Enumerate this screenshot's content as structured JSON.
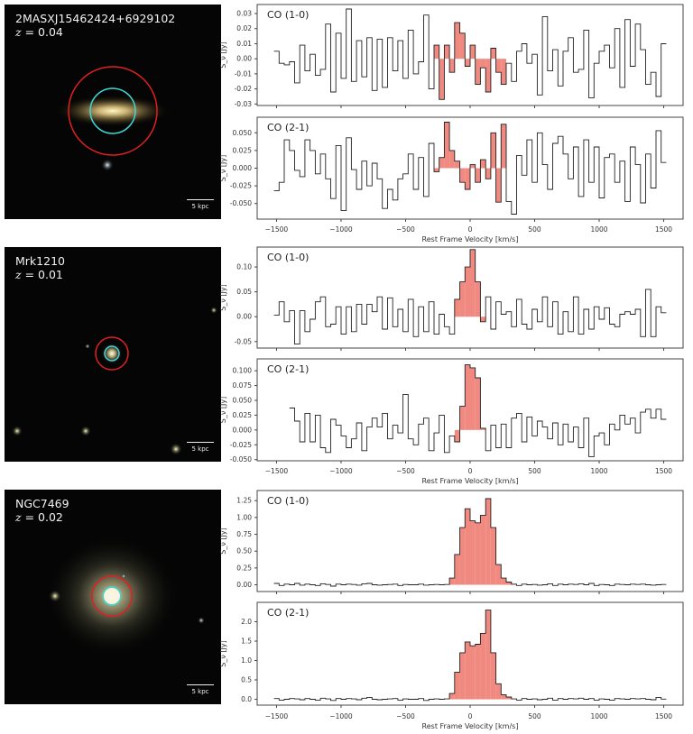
{
  "galaxies": [
    {
      "name": "2MASXJ15462424+6929102",
      "z_label": "z",
      "z_value": "= 0.04",
      "scale_label": "5 kpc"
    },
    {
      "name": "Mrk1210",
      "z_label": "z",
      "z_value": "= 0.01",
      "scale_label": "5 kpc"
    },
    {
      "name": "NGC7469",
      "z_label": "z",
      "z_value": "= 0.02",
      "scale_label": "5 kpc"
    }
  ],
  "colors": {
    "line": "#222222",
    "fill": "#f08a80",
    "aperture_outer": "#e02020",
    "aperture_inner": "#40d8d8"
  },
  "chart_data": [
    {
      "type": "line",
      "galaxy": "2MASXJ15462424+6929102",
      "title": "CO (1-0)",
      "ylabel": "S_ν [Jy]",
      "xlabel": "Rest Frame Velocity [km/s]",
      "xlim": [
        -1650,
        1650
      ],
      "ylim": [
        -0.031,
        0.036
      ],
      "xticks": [
        -1500,
        -1000,
        -500,
        0,
        500,
        1000,
        1500
      ],
      "yticks": [
        -0.03,
        -0.02,
        -0.01,
        0.0,
        0.01,
        0.02,
        0.03
      ],
      "ytick_decimals": 2,
      "x_start": -1500,
      "channel_width": 40,
      "line_window": [
        -260,
        260
      ],
      "values": [
        0.005,
        -0.003,
        -0.004,
        -0.002,
        -0.016,
        0.009,
        -0.008,
        0.003,
        -0.011,
        -0.007,
        0.023,
        -0.022,
        0.017,
        -0.013,
        0.033,
        -0.015,
        0.012,
        -0.012,
        0.014,
        -0.021,
        0.013,
        -0.019,
        0.014,
        -0.008,
        0.012,
        -0.013,
        0.019,
        -0.01,
        -0.002,
        0.029,
        -0.02,
        0.009,
        -0.027,
        0.009,
        -0.009,
        0.024,
        0.017,
        -0.005,
        0.009,
        -0.017,
        -0.006,
        -0.022,
        0.007,
        -0.009,
        -0.017,
        -0.003,
        -0.015,
        0.005,
        0.01,
        -0.003,
        0.003,
        -0.024,
        0.028,
        -0.008,
        0.006,
        -0.018,
        0.005,
        0.014,
        -0.009,
        -0.007,
        0.019,
        -0.026,
        -0.003,
        0.005,
        0.009,
        -0.006,
        0.02,
        -0.019,
        0.026,
        -0.005,
        0.023,
        0.006,
        -0.017,
        -0.009,
        -0.025,
        0.01
      ]
    },
    {
      "type": "line",
      "galaxy": "2MASXJ15462424+6929102",
      "title": "CO (2-1)",
      "ylabel": "S_ν [Jy]",
      "xlabel": "Rest Frame Velocity [km/s]",
      "xlim": [
        -1650,
        1650
      ],
      "ylim": [
        -0.072,
        0.072
      ],
      "xticks": [
        -1500,
        -1000,
        -500,
        0,
        500,
        1000,
        1500
      ],
      "yticks": [
        -0.05,
        -0.025,
        0.0,
        0.025,
        0.05
      ],
      "ytick_decimals": 3,
      "x_start": -1500,
      "channel_width": 40,
      "line_window": [
        -260,
        260
      ],
      "values": [
        -0.032,
        -0.02,
        0.04,
        0.025,
        -0.003,
        -0.012,
        0.04,
        0.025,
        -0.008,
        0.02,
        -0.015,
        -0.043,
        0.032,
        -0.06,
        0.043,
        -0.002,
        -0.03,
        0.01,
        -0.025,
        0.007,
        -0.015,
        -0.057,
        -0.03,
        -0.045,
        -0.015,
        -0.008,
        0.02,
        -0.03,
        0.015,
        -0.04,
        0.035,
        -0.005,
        0.015,
        0.065,
        0.025,
        0.01,
        -0.02,
        -0.03,
        0.005,
        -0.02,
        0.012,
        -0.015,
        0.05,
        -0.048,
        0.062,
        -0.047,
        -0.065,
        0.018,
        -0.01,
        0.04,
        -0.02,
        0.05,
        0.005,
        -0.03,
        0.035,
        0.045,
        0.02,
        -0.015,
        0.03,
        -0.04,
        0.04,
        -0.02,
        0.03,
        -0.042,
        0.015,
        0.02,
        -0.02,
        0.01,
        -0.047,
        0.03,
        0.005,
        -0.049,
        0.02,
        -0.028,
        0.053,
        0.008
      ]
    },
    {
      "type": "line",
      "galaxy": "Mrk1210",
      "title": "CO (1-0)",
      "ylabel": "S_ν [Jy]",
      "xlabel": "Rest Frame Velocity [km/s]",
      "xlim": [
        -1650,
        1650
      ],
      "ylim": [
        -0.063,
        0.14
      ],
      "xticks": [
        -1500,
        -1000,
        -500,
        0,
        500,
        1000,
        1500
      ],
      "yticks": [
        -0.05,
        0.0,
        0.05,
        0.1
      ],
      "ytick_decimals": 2,
      "x_start": -1500,
      "channel_width": 40,
      "line_window": [
        -110,
        100
      ],
      "values": [
        0.003,
        0.03,
        -0.01,
        0.012,
        -0.055,
        0.012,
        -0.03,
        -0.005,
        0.03,
        0.04,
        -0.02,
        -0.015,
        0.02,
        -0.035,
        0.02,
        -0.03,
        0.025,
        -0.015,
        0.025,
        0.01,
        0.04,
        -0.025,
        0.038,
        -0.02,
        0.015,
        -0.03,
        0.035,
        -0.04,
        0.02,
        -0.03,
        0.03,
        -0.035,
        0.005,
        -0.02,
        -0.035,
        0.035,
        0.07,
        0.1,
        0.135,
        0.07,
        -0.01,
        0.04,
        -0.025,
        0.03,
        0.005,
        0.01,
        -0.02,
        0.035,
        -0.015,
        -0.025,
        0.015,
        -0.01,
        0.04,
        -0.02,
        0.03,
        -0.035,
        0.01,
        -0.03,
        0.04,
        -0.035,
        0.015,
        -0.025,
        0.02,
        -0.005,
        0.018,
        -0.015,
        -0.02,
        0.005,
        0.01,
        0.005,
        0.015,
        -0.04,
        0.055,
        -0.04,
        0.02,
        0.008
      ]
    },
    {
      "type": "line",
      "galaxy": "Mrk1210",
      "title": "CO (2-1)",
      "ylabel": "S_ν [Jy]",
      "xlabel": "Rest Frame Velocity [km/s]",
      "xlim": [
        -1650,
        1650
      ],
      "ylim": [
        -0.052,
        0.12
      ],
      "xticks": [
        -1500,
        -1000,
        -500,
        0,
        500,
        1000,
        1500
      ],
      "yticks": [
        -0.05,
        -0.025,
        0.0,
        0.025,
        0.05,
        0.075,
        0.1
      ],
      "ytick_decimals": 3,
      "x_start": -1380,
      "channel_width": 40,
      "line_window": [
        -110,
        100
      ],
      "values": [
        0.037,
        0.015,
        -0.02,
        0.028,
        -0.02,
        0.025,
        -0.03,
        -0.038,
        0.018,
        0.008,
        -0.01,
        -0.03,
        -0.015,
        0.012,
        -0.035,
        0.005,
        0.02,
        0.005,
        0.028,
        -0.015,
        0.008,
        -0.005,
        0.06,
        -0.015,
        -0.025,
        0.01,
        0.02,
        -0.035,
        -0.005,
        0.025,
        -0.038,
        -0.01,
        -0.02,
        0.04,
        0.11,
        0.105,
        0.088,
        0.003,
        -0.035,
        0.008,
        -0.03,
        0.01,
        -0.03,
        0.02,
        0.028,
        -0.02,
        0.022,
        -0.01,
        0.015,
        0.005,
        -0.015,
        0.012,
        -0.025,
        0.01,
        -0.02,
        0.005,
        -0.03,
        0.02,
        -0.045,
        -0.01,
        -0.005,
        -0.025,
        0.01,
        0.0,
        0.025,
        0.01,
        0.02,
        -0.005,
        0.03,
        0.035,
        0.02,
        0.035,
        0.018
      ]
    },
    {
      "type": "line",
      "galaxy": "NGC7469",
      "title": "CO (1-0)",
      "ylabel": "S_ν [Jy]",
      "xlabel": "Rest Frame Velocity [km/s]",
      "xlim": [
        -1650,
        1650
      ],
      "ylim": [
        -0.1,
        1.4
      ],
      "xticks": [
        -1500,
        -1000,
        -500,
        0,
        500,
        1000,
        1500
      ],
      "yticks": [
        0.0,
        0.25,
        0.5,
        0.75,
        1.0,
        1.25
      ],
      "ytick_decimals": 2,
      "x_start": -1500,
      "channel_width": 40,
      "line_window": [
        -160,
        360
      ],
      "values": [
        0.02,
        -0.01,
        0.01,
        0.0,
        0.02,
        -0.005,
        0.01,
        0.0,
        -0.01,
        0.015,
        0.005,
        -0.02,
        0.01,
        0.0,
        0.01,
        0.005,
        -0.005,
        0.015,
        0.02,
        0.0,
        -0.005,
        0.0,
        0.005,
        0.01,
        -0.01,
        0.005,
        0.0,
        0.0,
        0.01,
        -0.005,
        0.0,
        0.005,
        0.0,
        0.005,
        0.1,
        0.45,
        0.85,
        1.13,
        0.95,
        0.92,
        1.03,
        1.28,
        0.85,
        0.3,
        0.1,
        0.04,
        0.01,
        -0.01,
        0.01,
        0.0,
        0.005,
        -0.005,
        0.0,
        0.015,
        -0.01,
        0.01,
        0.0,
        0.01,
        0.005,
        0.015,
        0.0,
        0.02,
        -0.01,
        0.005,
        0.0,
        -0.01,
        0.01,
        0.005,
        0.0,
        0.01,
        0.005,
        0.01,
        0.0,
        -0.005,
        0.0,
        0.005
      ]
    },
    {
      "type": "line",
      "galaxy": "NGC7469",
      "title": "CO (2-1)",
      "ylabel": "S_ν [Jy]",
      "xlabel": "Rest Frame Velocity [km/s]",
      "xlim": [
        -1650,
        1650
      ],
      "ylim": [
        -0.15,
        2.5
      ],
      "xticks": [
        -1500,
        -1000,
        -500,
        0,
        500,
        1000,
        1500
      ],
      "yticks": [
        0.0,
        0.5,
        1.0,
        1.5,
        2.0
      ],
      "ytick_decimals": 1,
      "x_start": -1500,
      "channel_width": 40,
      "line_window": [
        -160,
        360
      ],
      "values": [
        0.02,
        -0.02,
        0.0,
        0.02,
        0.01,
        -0.01,
        0.02,
        0.0,
        -0.02,
        0.03,
        0.01,
        -0.03,
        0.02,
        0.0,
        0.02,
        0.01,
        -0.01,
        0.03,
        0.05,
        0.0,
        -0.01,
        0.0,
        0.01,
        0.02,
        -0.02,
        0.01,
        0.0,
        0.0,
        0.02,
        -0.03,
        0.0,
        0.01,
        0.0,
        0.01,
        0.15,
        0.7,
        1.2,
        1.48,
        1.38,
        1.42,
        1.7,
        2.3,
        1.2,
        0.4,
        0.12,
        0.06,
        0.01,
        -0.02,
        0.02,
        0.0,
        0.01,
        -0.01,
        0.0,
        0.03,
        -0.02,
        0.02,
        0.0,
        0.02,
        0.01,
        0.03,
        0.0,
        0.02,
        -0.02,
        0.01,
        0.0,
        -0.02,
        0.02,
        0.01,
        0.0,
        0.02,
        0.01,
        0.02,
        0.0,
        -0.01,
        0.05,
        0.005
      ]
    }
  ]
}
